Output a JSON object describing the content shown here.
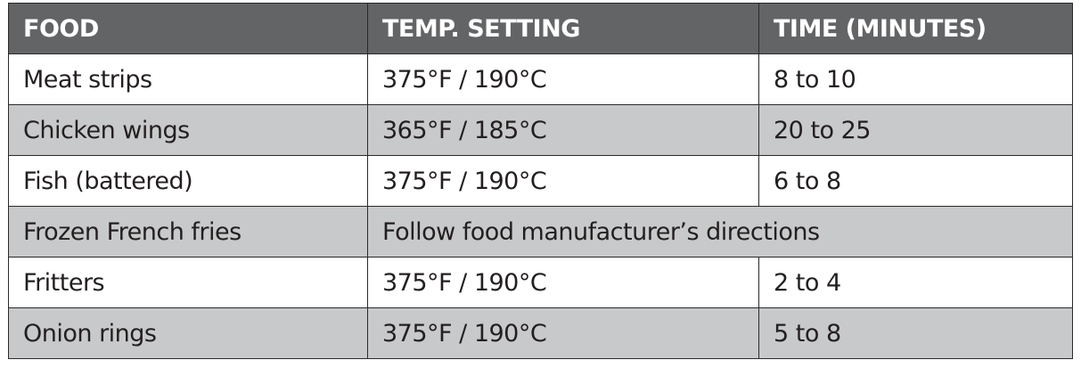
{
  "table": {
    "headers": [
      "FOOD",
      "TEMP. SETTING",
      "TIME (MINUTES)"
    ],
    "rows": [
      {
        "food": "Meat strips",
        "temp": "375°F / 190°C",
        "time": "8 to 10"
      },
      {
        "food": "Chicken wings",
        "temp": "365°F / 185°C",
        "time": "20 to 25"
      },
      {
        "food": "Fish (battered)",
        "temp": "375°F / 190°C",
        "time": "6 to 8"
      },
      {
        "food": "Frozen French fries",
        "note": "Follow food manufacturer’s directions"
      },
      {
        "food": "Fritters",
        "temp": "375°F / 190°C",
        "time": "2 to 4"
      },
      {
        "food": "Onion rings",
        "temp": "375°F / 190°C",
        "time": "5 to 8"
      }
    ]
  },
  "colors": {
    "header_bg": "#636466",
    "alt_row_bg": "#c8c9ca"
  }
}
